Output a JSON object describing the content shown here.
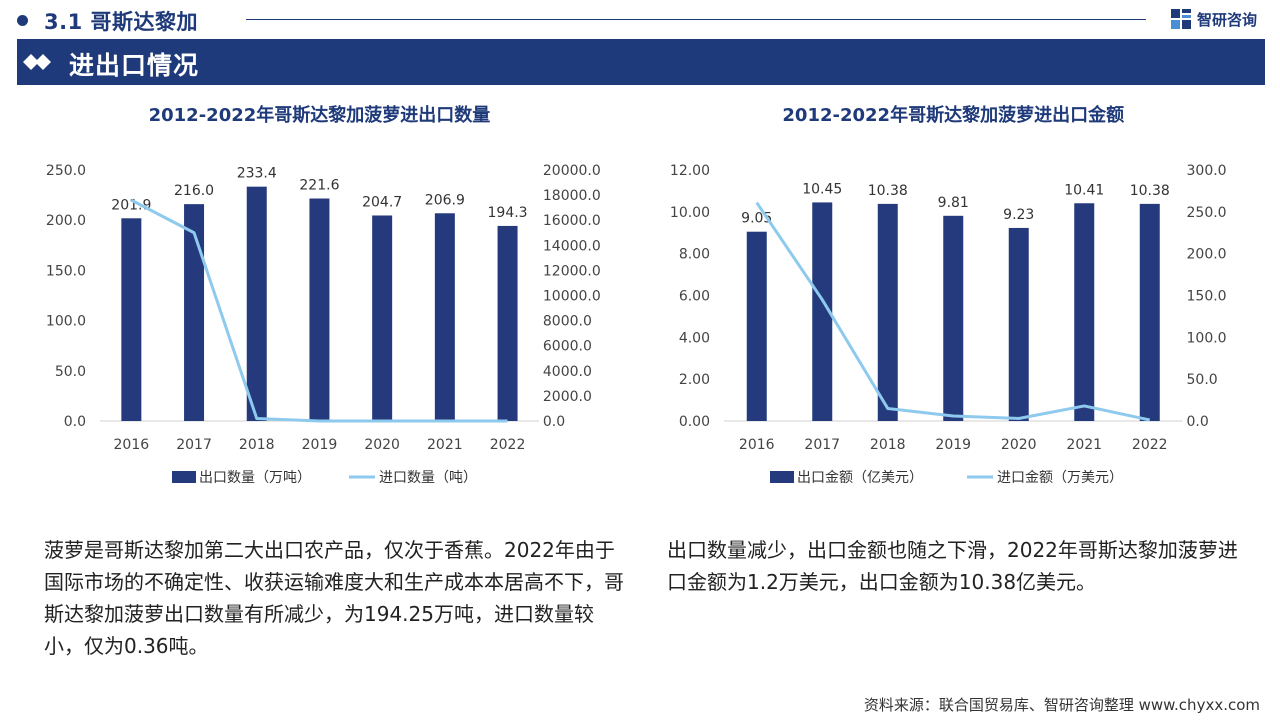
{
  "header": {
    "section_title": "3.1 哥斯达黎加",
    "brand": "智研咨询",
    "banner_title": "进出口情况"
  },
  "colors": {
    "navy": "#1f3a7a",
    "bar": "#253a7c",
    "line": "#8ec9ee"
  },
  "chart_data": [
    {
      "type": "bar",
      "title": "2012-2022年哥斯达黎加菠萝进出口数量",
      "categories": [
        "2016",
        "2017",
        "2018",
        "2019",
        "2020",
        "2021",
        "2022"
      ],
      "series": [
        {
          "name": "出口数量（万吨）",
          "type": "bar",
          "axis": "left",
          "values": [
            201.9,
            216.0,
            233.4,
            221.6,
            204.7,
            206.9,
            194.3
          ],
          "labels": [
            "201.9",
            "216.0",
            "233.4",
            "221.6",
            "204.7",
            "206.9",
            "194.3"
          ]
        },
        {
          "name": "进口数量（吨）",
          "type": "line",
          "axis": "right",
          "values": [
            17600,
            15000,
            200,
            0,
            0,
            0,
            0.36
          ]
        }
      ],
      "y_left": {
        "min": 0,
        "max": 250,
        "ticks": [
          "0.0",
          "50.0",
          "100.0",
          "150.0",
          "200.0",
          "250.0"
        ]
      },
      "y_right": {
        "min": 0,
        "max": 20000,
        "ticks": [
          "0.0",
          "2000.0",
          "4000.0",
          "6000.0",
          "8000.0",
          "10000.0",
          "12000.0",
          "14000.0",
          "16000.0",
          "18000.0",
          "20000.0"
        ]
      }
    },
    {
      "type": "bar",
      "title": "2012-2022年哥斯达黎加菠萝进出口金额",
      "categories": [
        "2016",
        "2017",
        "2018",
        "2019",
        "2020",
        "2021",
        "2022"
      ],
      "series": [
        {
          "name": "出口金额（亿美元）",
          "type": "bar",
          "axis": "left",
          "values": [
            9.05,
            10.45,
            10.38,
            9.81,
            9.23,
            10.41,
            10.38
          ],
          "labels": [
            "9.05",
            "10.45",
            "10.38",
            "9.81",
            "9.23",
            "10.41",
            "10.38"
          ]
        },
        {
          "name": "进口金额（万美元）",
          "type": "line",
          "axis": "right",
          "values": [
            261,
            145,
            15,
            6,
            3,
            18,
            1.2
          ]
        }
      ],
      "y_left": {
        "min": 0,
        "max": 12,
        "ticks": [
          "0.00",
          "2.00",
          "4.00",
          "6.00",
          "8.00",
          "10.00",
          "12.00"
        ]
      },
      "y_right": {
        "min": 0,
        "max": 300,
        "ticks": [
          "0.0",
          "50.0",
          "100.0",
          "150.0",
          "200.0",
          "250.0",
          "300.0"
        ]
      }
    }
  ],
  "text": {
    "left_paragraph": "菠萝是哥斯达黎加第二大出口农产品，仅次于香蕉。2022年由于国际市场的不确定性、收获运输难度大和生产成本本居高不下，哥斯达黎加菠萝出口数量有所减少，为194.25万吨，进口数量较小，仅为0.36吨。",
    "right_paragraph": "出口数量减少，出口金额也随之下滑，2022年哥斯达黎加菠萝进口金额为1.2万美元，出口金额为10.38亿美元。"
  },
  "footer": {
    "source": "资料来源：联合国贸易库、智研咨询整理 www.chyxx.com"
  }
}
